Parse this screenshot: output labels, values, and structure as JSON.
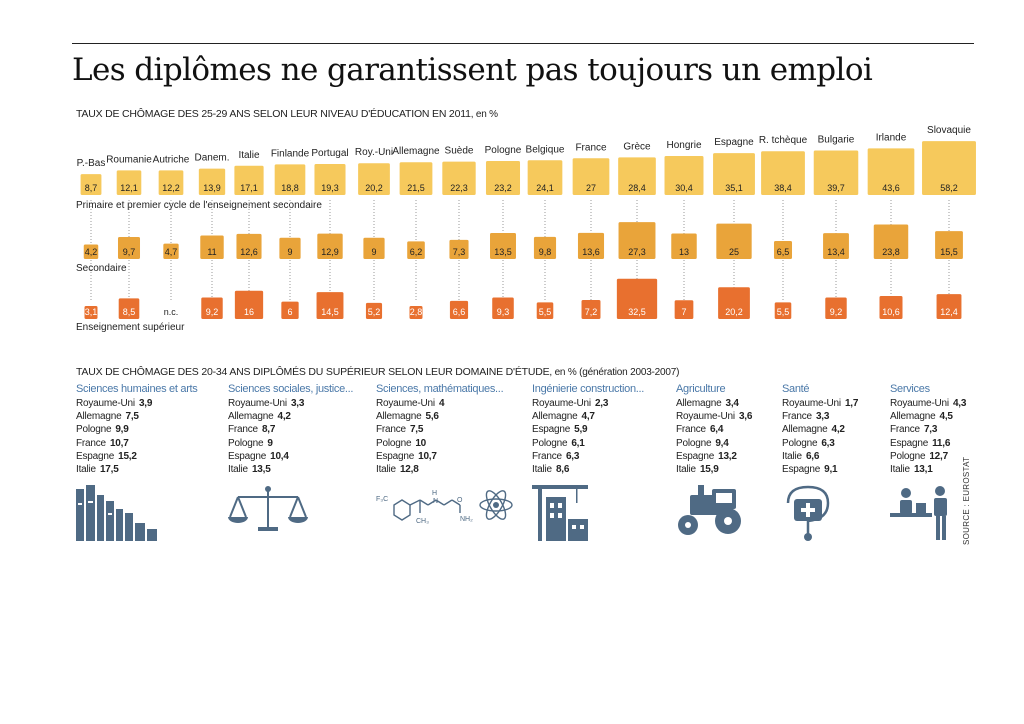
{
  "title": "Les diplômes ne garantissent pas toujours un emploi",
  "chart1_subtitle": "TAUX DE CHÔMAGE DES 25-29 ANS SELON LEUR NIVEAU D'ÉDUCATION EN 2011",
  "chart1_unit": ", en %",
  "chart2_subtitle": "TAUX DE CHÔMAGE DES 20-34 ANS DIPLÔMÉS DU SUPÉRIEUR SELON LEUR DOMAINE D'ÉTUDE",
  "chart2_unit": ", en % (génération 2003-2007)",
  "source": "SOURCE : EUROSTAT",
  "colors": {
    "primary": "#f6c95c",
    "secondary": "#e9a43a",
    "superieur": "#e8702f",
    "accent": "#4a78a8",
    "icon": "#4f6a84"
  },
  "chart_data": [
    {
      "type": "bar",
      "categories": [
        "P.-Bas",
        "Roumanie",
        "Autriche",
        "Danem.",
        "Italie",
        "Finlande",
        "Portugal",
        "Roy.-Uni",
        "Allemagne",
        "Suède",
        "Pologne",
        "Belgique",
        "France",
        "Grèce",
        "Hongrie",
        "Espagne",
        "R. tchèque",
        "Bulgarie",
        "Irlande",
        "Slovaquie"
      ],
      "series": [
        {
          "name": "Primaire et premier cycle de l'enseignement secondaire",
          "labels": [
            "8,7",
            "12,1",
            "12,2",
            "13,9",
            "17,1",
            "18,8",
            "19,3",
            "20,2",
            "21,5",
            "22,3",
            "23,2",
            "24,1",
            "27",
            "28,4",
            "30,4",
            "35,1",
            "38,4",
            "39,7",
            "43,6",
            "58,2"
          ],
          "values": [
            8.7,
            12.1,
            12.2,
            13.9,
            17.1,
            18.8,
            19.3,
            20.2,
            21.5,
            22.3,
            23.2,
            24.1,
            27,
            28.4,
            30.4,
            35.1,
            38.4,
            39.7,
            43.6,
            58.2
          ]
        },
        {
          "name": "Secondaire",
          "labels": [
            "4,2",
            "9,7",
            "4,7",
            "11",
            "12,6",
            "9",
            "12,9",
            "9",
            "6,2",
            "7,3",
            "13,5",
            "9,8",
            "13,6",
            "27,3",
            "13",
            "25",
            "6,5",
            "13,4",
            "23,8",
            "15,5"
          ],
          "values": [
            4.2,
            9.7,
            4.7,
            11,
            12.6,
            9,
            12.9,
            9,
            6.2,
            7.3,
            13.5,
            9.8,
            13.6,
            27.3,
            13,
            25,
            6.5,
            13.4,
            23.8,
            15.5
          ]
        },
        {
          "name": "Enseignement supérieur",
          "labels": [
            "3,1",
            "8,5",
            "n.c.",
            "9,2",
            "16",
            "6",
            "14,5",
            "5,2",
            "2,8",
            "6,6",
            "9,3",
            "5,5",
            "7,2",
            "32,5",
            "7",
            "20,2",
            "5,5",
            "9,2",
            "10,6",
            "12,4"
          ],
          "values": [
            3.1,
            8.5,
            null,
            9.2,
            16,
            6,
            14.5,
            5.2,
            2.8,
            6.6,
            9.3,
            5.5,
            7.2,
            32.5,
            7,
            20.2,
            5.5,
            9.2,
            10.6,
            12.4
          ]
        }
      ]
    },
    {
      "type": "table",
      "domains": [
        {
          "name": "Sciences humaines et arts",
          "icon": "books-icon",
          "rows": [
            [
              "Royaume-Uni",
              "3,9"
            ],
            [
              "Allemagne",
              "7,5"
            ],
            [
              "Pologne",
              "9,9"
            ],
            [
              "France",
              "10,7"
            ],
            [
              "Espagne",
              "15,2"
            ],
            [
              "Italie",
              "17,5"
            ]
          ]
        },
        {
          "name": "Sciences sociales, justice...",
          "icon": "scales-icon",
          "rows": [
            [
              "Royaume-Uni",
              "3,3"
            ],
            [
              "Allemagne",
              "4,2"
            ],
            [
              "France",
              "8,7"
            ],
            [
              "Pologne",
              "9"
            ],
            [
              "Espagne",
              "10,4"
            ],
            [
              "Italie",
              "13,5"
            ]
          ]
        },
        {
          "name": "Sciences, mathématiques...",
          "icon": "molecule-atom-icon",
          "molecule_labels": [
            "F₃C",
            "H",
            "N",
            "CH₃",
            "O",
            "NH₂"
          ],
          "rows": [
            [
              "Royaume-Uni",
              "4"
            ],
            [
              "Allemagne",
              "5,6"
            ],
            [
              "France",
              "7,5"
            ],
            [
              "Pologne",
              "10"
            ],
            [
              "Espagne",
              "10,7"
            ],
            [
              "Italie",
              "12,8"
            ]
          ]
        },
        {
          "name": "Ingénierie construction...",
          "icon": "crane-building-icon",
          "rows": [
            [
              "Royaume-Uni",
              "2,3"
            ],
            [
              "Allemagne",
              "4,7"
            ],
            [
              "Espagne",
              "5,9"
            ],
            [
              "Pologne",
              "6,1"
            ],
            [
              "France",
              "6,3"
            ],
            [
              "Italie",
              "8,6"
            ]
          ]
        },
        {
          "name": "Agriculture",
          "icon": "tractor-icon",
          "rows": [
            [
              "Allemagne",
              "3,4"
            ],
            [
              "Royaume-Uni",
              "3,6"
            ],
            [
              "France",
              "6,4"
            ],
            [
              "Pologne",
              "9,4"
            ],
            [
              "Espagne",
              "13,2"
            ],
            [
              "Italie",
              "15,9"
            ]
          ]
        },
        {
          "name": "Santé",
          "icon": "stethoscope-kit-icon",
          "rows": [
            [
              "Royaume-Uni",
              "1,7"
            ],
            [
              "France",
              "3,3"
            ],
            [
              "Allemagne",
              "4,2"
            ],
            [
              "Pologne",
              "6,3"
            ],
            [
              "Italie",
              "6,6"
            ],
            [
              "Espagne",
              "9,1"
            ]
          ]
        },
        {
          "name": "Services",
          "icon": "service-desk-icon",
          "rows": [
            [
              "Royaume-Uni",
              "4,3"
            ],
            [
              "Allemagne",
              "4,5"
            ],
            [
              "France",
              "7,3"
            ],
            [
              "Espagne",
              "11,6"
            ],
            [
              "Pologne",
              "12,7"
            ],
            [
              "Italie",
              "13,1"
            ]
          ]
        }
      ]
    }
  ]
}
